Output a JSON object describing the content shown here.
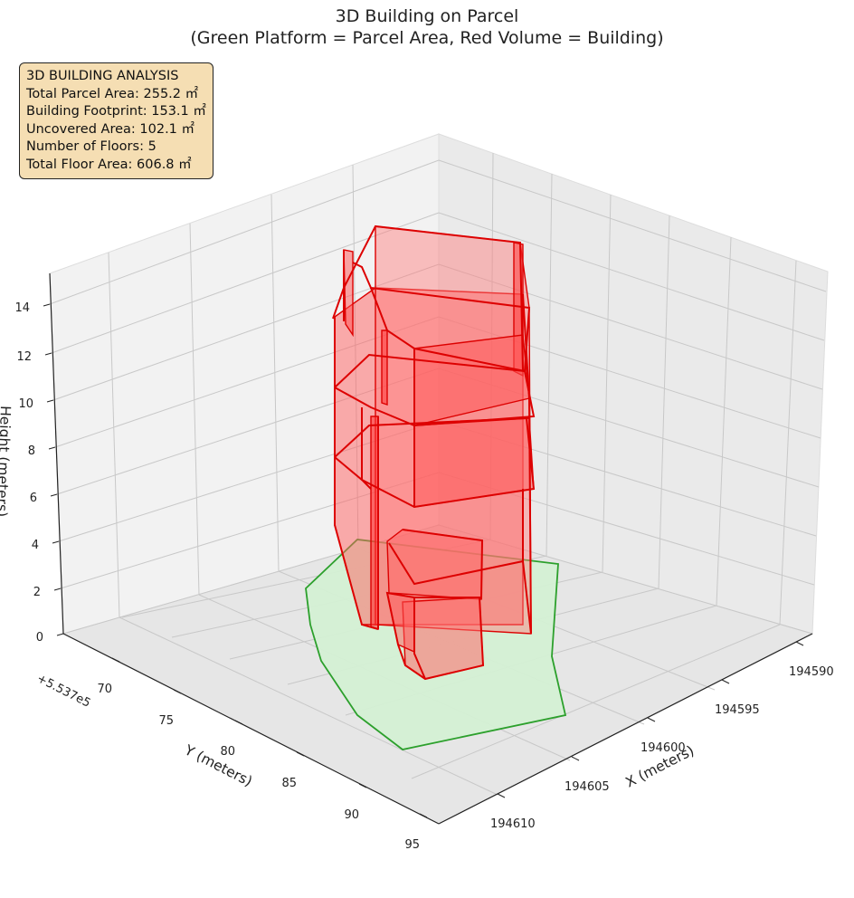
{
  "title": {
    "line1": "3D Building on Parcel",
    "line2": "(Green Platform = Parcel Area, Red Volume = Building)"
  },
  "info_box": {
    "heading": "3D BUILDING ANALYSIS",
    "lines": [
      "Total Parcel Area: 255.2 ㎡",
      "Building Footprint: 153.1 ㎡",
      "Uncovered Area: 102.1 ㎡",
      "Number of Floors: 5",
      "Total Floor Area: 606.8 ㎡"
    ]
  },
  "colors": {
    "parcel_fill": "#d4f0d4",
    "parcel_edge": "#2ca02c",
    "building_fill": "#ff7070",
    "building_edge": "#dd0000",
    "pane": "#f2f2f2",
    "grid": "#c8c8c8"
  },
  "chart_data": {
    "type": "3d-polygon",
    "xlabel": "X (meters)",
    "ylabel": "Y (meters)",
    "zlabel": "Height (meters)",
    "x_ticks": [
      "194590",
      "194595",
      "194600",
      "194605",
      "194610"
    ],
    "y_ticks": [
      "70",
      "75",
      "80",
      "85",
      "90",
      "95"
    ],
    "z_ticks": [
      "0",
      "2",
      "4",
      "6",
      "8",
      "10",
      "12",
      "14"
    ],
    "y_offset_label": "+5.537e5",
    "xlim": [
      194587,
      194612
    ],
    "ylim": [
      553766,
      553796
    ],
    "zlim": [
      0,
      15
    ],
    "parcel": {
      "name": "Parcel Area",
      "height": 0
    },
    "building": {
      "name": "Building",
      "floors": 5,
      "floor_height": 3,
      "total_height": 15
    },
    "stats": {
      "total_parcel_area": 255.2,
      "building_footprint": 153.1,
      "uncovered_area": 102.1,
      "number_of_floors": 5,
      "total_floor_area": 606.8
    }
  }
}
